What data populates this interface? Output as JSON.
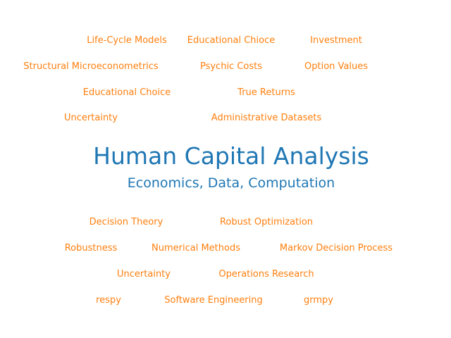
{
  "colors": {
    "keyword": "#ff7f0e",
    "title": "#1f77b4",
    "background": "#ffffff"
  },
  "title": "Human Capital Analysis",
  "subtitle": "Economics, Data, Computation",
  "top_keywords": [
    "Life-Cycle Models",
    "Educational Chioce",
    "Investment",
    "Structural Microeconometrics",
    "Psychic Costs",
    "Option Values",
    "Educational Choice",
    "True Returns",
    "Uncertainty",
    "Administrative Datasets"
  ],
  "bottom_keywords": [
    "Decision Theory",
    "Robust Optimization",
    "Robustness",
    "Numerical Methods",
    "Markov Decision Process",
    "Uncertainty",
    "Operations Research",
    "respy",
    "Software Engineering",
    "grmpy"
  ]
}
